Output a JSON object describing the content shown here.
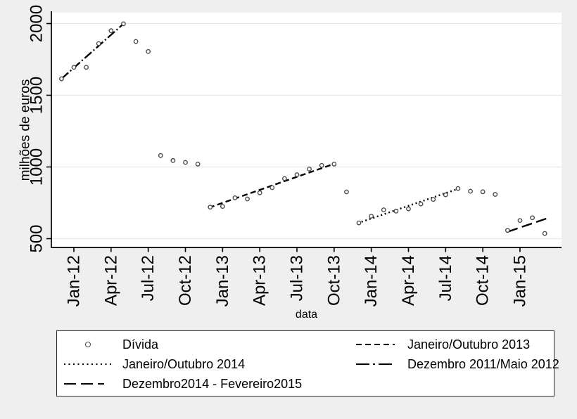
{
  "colors": {
    "outer_background": "#efefef",
    "plot_background": "#ffffff",
    "gridline": "#e7e7e7",
    "axis": "#000000",
    "marker": "#4a4a4a",
    "trend_line": "#000000",
    "legend_border": "#2b2b2b"
  },
  "chart_data": {
    "type": "scatter",
    "title": "",
    "xlabel": "data",
    "ylabel": "milhões de euros",
    "ylim": [
      440,
      2075
    ],
    "grid": true,
    "y_ticks": [
      {
        "value": 2000,
        "label": "2000"
      },
      {
        "value": 1500,
        "label": "1500"
      },
      {
        "value": 1000,
        "label": "1000"
      },
      {
        "value": 500,
        "label": "500"
      }
    ],
    "x_ticks": [
      {
        "month_index": 1,
        "label": "Jan-12"
      },
      {
        "month_index": 4,
        "label": "Apr-12"
      },
      {
        "month_index": 7,
        "label": "Jul-12"
      },
      {
        "month_index": 10,
        "label": "Oct-12"
      },
      {
        "month_index": 13,
        "label": "Jan-13"
      },
      {
        "month_index": 16,
        "label": "Apr-13"
      },
      {
        "month_index": 19,
        "label": "Jul-13"
      },
      {
        "month_index": 22,
        "label": "Oct-13"
      },
      {
        "month_index": 25,
        "label": "Jan-14"
      },
      {
        "month_index": 28,
        "label": "Apr-14"
      },
      {
        "month_index": 31,
        "label": "Jul-14"
      },
      {
        "month_index": 34,
        "label": "Oct-14"
      },
      {
        "month_index": 37,
        "label": "Jan-15"
      }
    ],
    "months": [
      "Dec-11",
      "Jan-12",
      "Feb-12",
      "Mar-12",
      "Apr-12",
      "May-12",
      "Jun-12",
      "Jul-12",
      "Aug-12",
      "Sep-12",
      "Oct-12",
      "Nov-12",
      "Dec-12",
      "Jan-13",
      "Feb-13",
      "Mar-13",
      "Apr-13",
      "May-13",
      "Jun-13",
      "Jul-13",
      "Aug-13",
      "Sep-13",
      "Oct-13",
      "Nov-13",
      "Dec-13",
      "Jan-14",
      "Feb-14",
      "Mar-14",
      "Apr-14",
      "May-14",
      "Jun-14",
      "Jul-14",
      "Aug-14",
      "Sep-14",
      "Oct-14",
      "Nov-14",
      "Dec-14",
      "Jan-15",
      "Feb-15",
      "Mar-15"
    ],
    "series": [
      {
        "name": "Dívida",
        "marker": "hollow-circle",
        "values": [
          1615,
          1695,
          1695,
          1860,
          1950,
          1998,
          1875,
          1805,
          1080,
          1045,
          1032,
          1020,
          720,
          725,
          785,
          777,
          820,
          856,
          919,
          946,
          986,
          1011,
          1020,
          826,
          610,
          657,
          701,
          692,
          708,
          742,
          774,
          806,
          850,
          831,
          827,
          809,
          558,
          627,
          646,
          536
        ]
      }
    ],
    "trend_lines": [
      {
        "label": "Dezembro 2011/Maio 2012",
        "style": "dashdot",
        "from_month": 0,
        "from_value": 1615,
        "to_month": 5,
        "to_value": 1998
      },
      {
        "label": "Janeiro/Outubro 2013",
        "style": "dashed",
        "from_month": 11.9,
        "from_value": 716,
        "to_month": 22,
        "to_value": 1022
      },
      {
        "label": "Janeiro/Outubro 2014",
        "style": "dotted",
        "from_month": 23.9,
        "from_value": 608,
        "to_month": 32.3,
        "to_value": 856
      },
      {
        "label": "Dezembro2014 - Fevereiro2015",
        "style": "longdash",
        "from_month": 36,
        "from_value": 548,
        "to_month": 39.3,
        "to_value": 645
      }
    ]
  },
  "legend": {
    "entries": [
      {
        "label": "Dívida",
        "symbol": "circle"
      },
      {
        "label": "Janeiro/Outubro 2013",
        "symbol": "dashed"
      },
      {
        "label": "Janeiro/Outubro 2014",
        "symbol": "dotted"
      },
      {
        "label": "Dezembro 2011/Maio 2012",
        "symbol": "dashdot"
      },
      {
        "label": "Dezembro2014 - Fevereiro2015",
        "symbol": "longdash"
      }
    ]
  }
}
